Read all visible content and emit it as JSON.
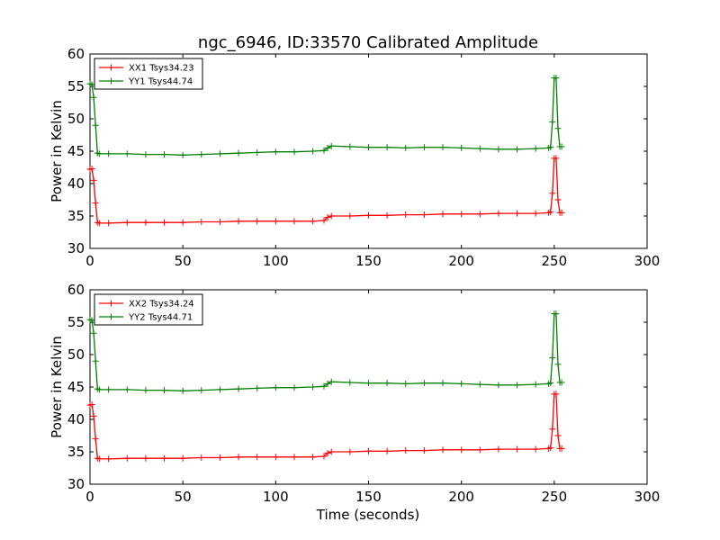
{
  "title": "ngc_6946, ID:33570 Calibrated Amplitude",
  "xlabel": "Time (seconds)",
  "chart_data": [
    {
      "type": "line",
      "title": "ngc_6946, ID:33570 Calibrated Amplitude",
      "xlabel": "",
      "ylabel": "Power in Kelvin",
      "xlim": [
        0,
        300
      ],
      "ylim": [
        30,
        60
      ],
      "xticks": [
        0,
        50,
        100,
        150,
        200,
        250,
        300
      ],
      "yticks": [
        30,
        35,
        40,
        45,
        50,
        55,
        60
      ],
      "legend_position": "top-left",
      "grid": false,
      "marker": "plus",
      "series": [
        {
          "name": "XX1 Tsys34.23",
          "color": "#ff0000",
          "x": [
            0,
            1,
            2,
            3,
            4,
            5,
            10,
            20,
            30,
            40,
            50,
            60,
            70,
            80,
            90,
            100,
            110,
            120,
            126,
            128,
            130,
            140,
            150,
            160,
            170,
            180,
            190,
            200,
            210,
            220,
            230,
            240,
            247,
            248,
            249,
            250,
            251,
            252,
            253,
            254
          ],
          "y": [
            42.2,
            42.3,
            40.5,
            37.0,
            34.0,
            33.9,
            33.9,
            34.0,
            34.0,
            34.0,
            34.0,
            34.1,
            34.1,
            34.2,
            34.2,
            34.2,
            34.2,
            34.2,
            34.3,
            34.8,
            35.0,
            35.0,
            35.1,
            35.1,
            35.2,
            35.2,
            35.3,
            35.3,
            35.3,
            35.4,
            35.4,
            35.4,
            35.5,
            35.6,
            38.5,
            43.9,
            43.9,
            37.5,
            35.5,
            35.5
          ]
        },
        {
          "name": "YY1 Tsys44.74",
          "color": "#008000",
          "x": [
            0,
            1,
            2,
            3,
            4,
            5,
            10,
            20,
            30,
            40,
            50,
            60,
            70,
            80,
            90,
            100,
            110,
            120,
            126,
            128,
            130,
            140,
            150,
            160,
            170,
            180,
            190,
            200,
            210,
            220,
            230,
            240,
            247,
            248,
            249,
            250,
            251,
            252,
            253,
            254
          ],
          "y": [
            55.4,
            55.3,
            53.3,
            49.0,
            44.7,
            44.6,
            44.6,
            44.6,
            44.5,
            44.5,
            44.4,
            44.5,
            44.6,
            44.7,
            44.8,
            44.9,
            44.9,
            45.0,
            45.1,
            45.5,
            45.8,
            45.7,
            45.6,
            45.6,
            45.5,
            45.6,
            45.6,
            45.5,
            45.4,
            45.3,
            45.3,
            45.4,
            45.5,
            45.6,
            49.5,
            56.3,
            56.3,
            48.5,
            45.7,
            45.7
          ]
        }
      ]
    },
    {
      "type": "line",
      "title": "",
      "xlabel": "Time (seconds)",
      "ylabel": "Power in Kelvin",
      "xlim": [
        0,
        300
      ],
      "ylim": [
        30,
        60
      ],
      "xticks": [
        0,
        50,
        100,
        150,
        200,
        250,
        300
      ],
      "yticks": [
        30,
        35,
        40,
        45,
        50,
        55,
        60
      ],
      "legend_position": "top-left",
      "grid": false,
      "marker": "plus",
      "series": [
        {
          "name": "XX2 Tsys34.24",
          "color": "#ff0000",
          "x": [
            0,
            1,
            2,
            3,
            4,
            5,
            10,
            20,
            30,
            40,
            50,
            60,
            70,
            80,
            90,
            100,
            110,
            120,
            126,
            128,
            130,
            140,
            150,
            160,
            170,
            180,
            190,
            200,
            210,
            220,
            230,
            240,
            247,
            248,
            249,
            250,
            251,
            252,
            253,
            254
          ],
          "y": [
            42.2,
            42.3,
            40.5,
            37.0,
            34.0,
            33.9,
            33.9,
            34.0,
            34.0,
            34.0,
            34.0,
            34.1,
            34.1,
            34.2,
            34.2,
            34.2,
            34.2,
            34.2,
            34.3,
            34.8,
            35.0,
            35.0,
            35.1,
            35.1,
            35.2,
            35.2,
            35.3,
            35.3,
            35.3,
            35.4,
            35.4,
            35.4,
            35.5,
            35.6,
            38.5,
            43.9,
            43.9,
            37.5,
            35.5,
            35.5
          ]
        },
        {
          "name": "YY2 Tsys44.71",
          "color": "#008000",
          "x": [
            0,
            1,
            2,
            3,
            4,
            5,
            10,
            20,
            30,
            40,
            50,
            60,
            70,
            80,
            90,
            100,
            110,
            120,
            126,
            128,
            130,
            140,
            150,
            160,
            170,
            180,
            190,
            200,
            210,
            220,
            230,
            240,
            247,
            248,
            249,
            250,
            251,
            252,
            253,
            254
          ],
          "y": [
            55.4,
            55.3,
            53.3,
            49.0,
            44.7,
            44.6,
            44.6,
            44.6,
            44.5,
            44.5,
            44.4,
            44.5,
            44.6,
            44.7,
            44.8,
            44.9,
            44.9,
            45.0,
            45.1,
            45.5,
            45.8,
            45.7,
            45.6,
            45.6,
            45.5,
            45.6,
            45.6,
            45.5,
            45.4,
            45.3,
            45.3,
            45.4,
            45.5,
            45.6,
            49.5,
            56.3,
            56.3,
            48.5,
            45.7,
            45.7
          ]
        }
      ]
    }
  ]
}
